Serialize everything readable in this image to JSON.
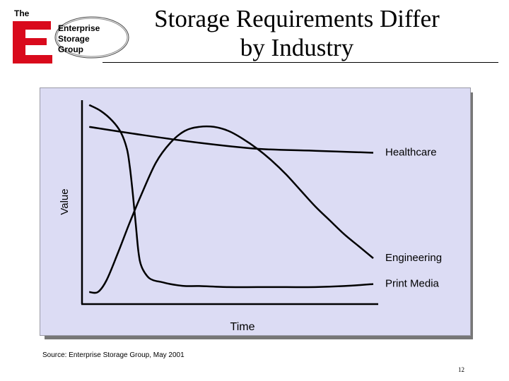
{
  "logo": {
    "the": "The",
    "lines": [
      "Enterprise",
      "Storage",
      "Group"
    ],
    "brand_color": "#d90a1c"
  },
  "title": {
    "line1": "Storage Requirements Differ",
    "line2": "by Industry"
  },
  "chart_data": {
    "type": "line",
    "title": "",
    "xlabel": "Time",
    "ylabel": "Value",
    "xlim": [
      0,
      100
    ],
    "ylim": [
      0,
      100
    ],
    "grid": false,
    "legend": "none",
    "panel_color": "#dcdcf4",
    "line_color": "#000000",
    "series": [
      {
        "name": "Healthcare",
        "x": [
          2,
          20,
          40,
          60,
          80,
          100
        ],
        "y": [
          88,
          84,
          80,
          77,
          76,
          75
        ]
      },
      {
        "name": "Engineering",
        "x": [
          2,
          5,
          8,
          12,
          16,
          20,
          25,
          30,
          35,
          40,
          45,
          50,
          55,
          60,
          65,
          70,
          75,
          80,
          85,
          90,
          95,
          100
        ],
        "y": [
          5,
          5,
          11,
          25,
          40,
          54,
          70,
          80,
          86,
          88,
          88,
          86,
          82,
          77,
          71,
          64,
          56,
          48,
          41,
          34,
          28,
          22
        ]
      },
      {
        "name": "Print Media",
        "x": [
          2,
          6,
          10,
          13,
          15,
          16,
          17,
          18,
          19,
          20,
          22,
          24,
          27,
          30,
          35,
          40,
          50,
          60,
          70,
          80,
          90,
          100
        ],
        "y": [
          99,
          96,
          91,
          85,
          77,
          68,
          55,
          40,
          25,
          18,
          13,
          11,
          10,
          9,
          8,
          8,
          7.5,
          7.5,
          7.5,
          7.5,
          8,
          9
        ]
      }
    ]
  },
  "source": "Source: Enterprise Storage Group, May 2001",
  "page_number": "12"
}
